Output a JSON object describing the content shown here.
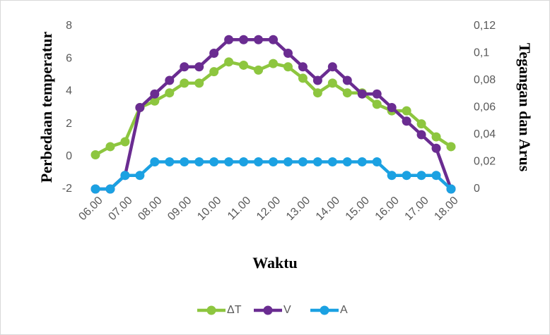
{
  "chart_data": {
    "type": "line",
    "y_label": "Perbedaan temperatur",
    "y2_label": "Tegangan dan Arus",
    "x_label": "Waktu",
    "categories": [
      "06.00",
      null,
      "07.00",
      null,
      "08.00",
      null,
      "09.00",
      null,
      "10.00",
      null,
      "11.00",
      null,
      "12.00",
      null,
      "13.00",
      null,
      "14.00",
      null,
      "15.00",
      null,
      "16.00",
      null,
      "17.00",
      null,
      "18.00"
    ],
    "series": [
      {
        "name": "ΔT",
        "color": "#8dc63f",
        "values": [
          0.1,
          0.6,
          0.9,
          3.0,
          3.4,
          3.9,
          4.5,
          4.5,
          5.2,
          5.8,
          5.6,
          5.3,
          5.7,
          5.5,
          4.8,
          3.9,
          4.5,
          3.9,
          3.9,
          3.2,
          2.8,
          2.8,
          2.0,
          1.2,
          0.6
        ]
      },
      {
        "name": "V",
        "color": "#6a2c91",
        "axis": "y2",
        "values": [
          0,
          0,
          0.01,
          0.06,
          0.07,
          0.08,
          0.09,
          0.09,
          0.1,
          0.11,
          0.11,
          0.11,
          0.11,
          0.1,
          0.09,
          0.08,
          0.09,
          0.08,
          0.07,
          0.07,
          0.06,
          0.05,
          0.04,
          0.03,
          0
        ]
      },
      {
        "name": "A",
        "color": "#1ba1e2",
        "axis": "y2",
        "values": [
          0,
          0,
          0.01,
          0.01,
          0.02,
          0.02,
          0.02,
          0.02,
          0.02,
          0.02,
          0.02,
          0.02,
          0.02,
          0.02,
          0.02,
          0.02,
          0.02,
          0.02,
          0.02,
          0.02,
          0.01,
          0.01,
          0.01,
          0.01,
          0
        ]
      }
    ],
    "ylim": [
      -2,
      8
    ],
    "yticks": [
      -2,
      0,
      2,
      4,
      6,
      8
    ],
    "y2lim": [
      0,
      0.12
    ],
    "y2ticks": [
      0,
      {
        "value": 0.02,
        "label": "0,02"
      },
      {
        "value": 0.04,
        "label": "0,04"
      },
      {
        "value": 0.06,
        "label": "0,06"
      },
      {
        "value": 0.08,
        "label": "0,08"
      },
      {
        "value": 0.1,
        "label": "0,1"
      },
      {
        "value": 0.12,
        "label": "0,12"
      }
    ],
    "legend": "bottom"
  }
}
